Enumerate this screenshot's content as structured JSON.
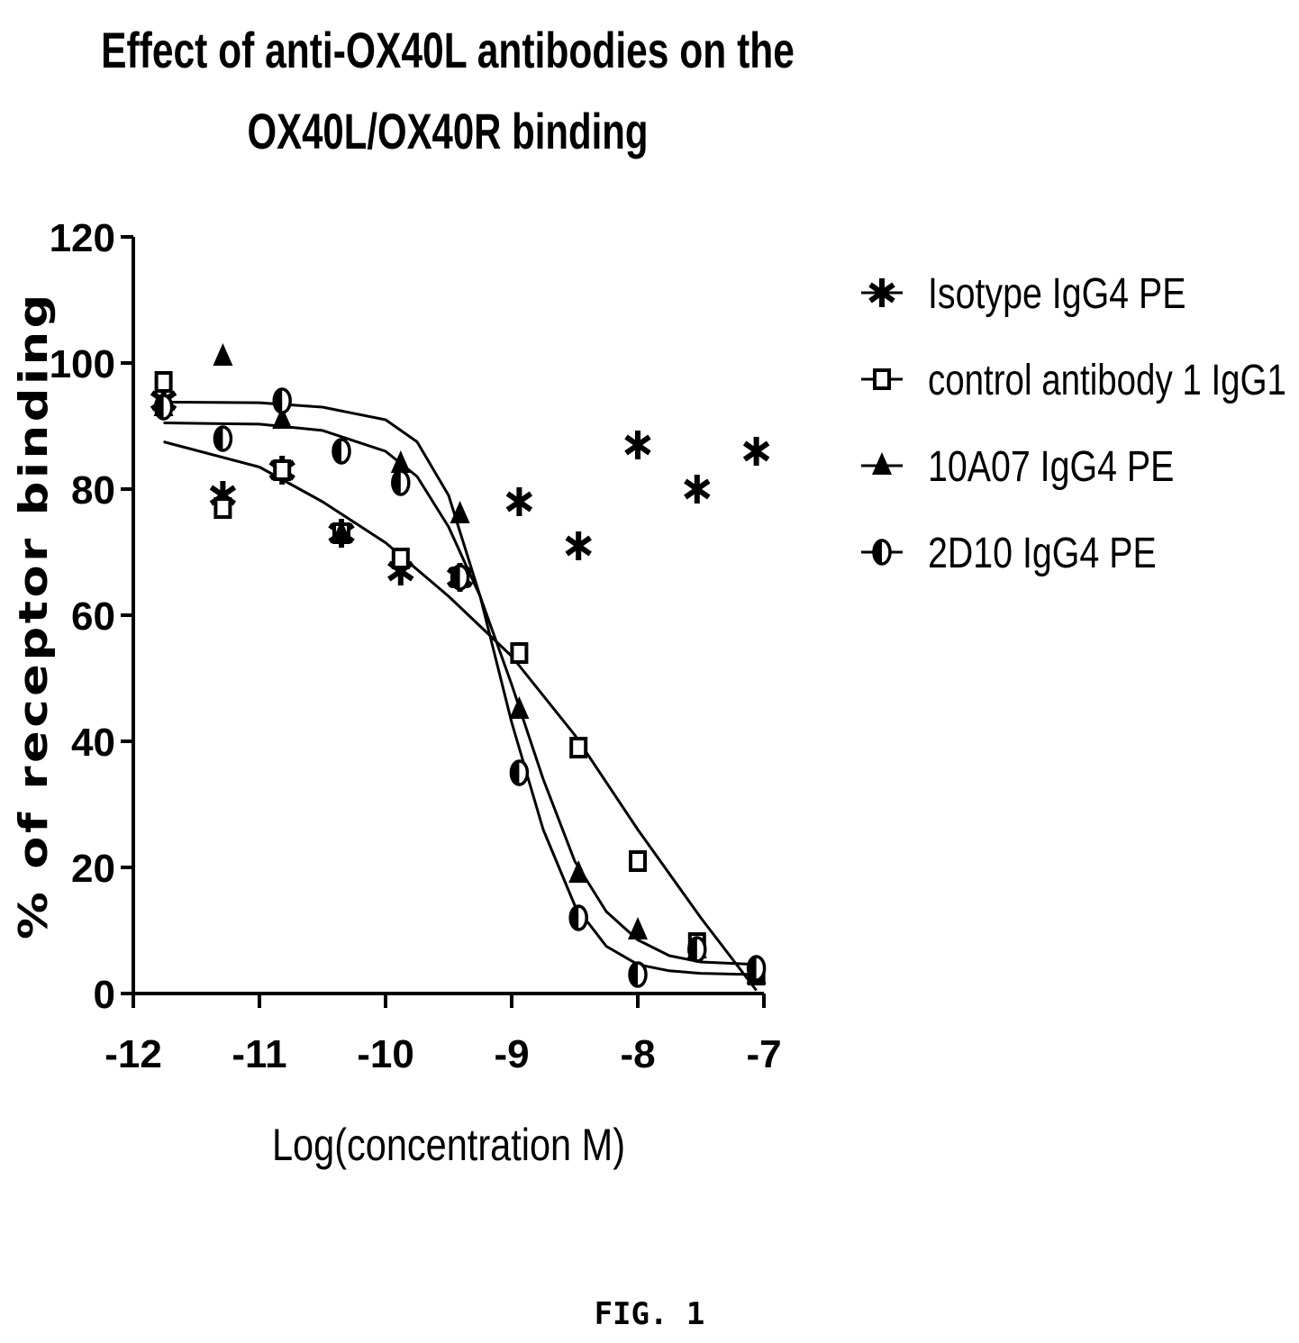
{
  "figure_caption": "FIG. 1",
  "chart_data": {
    "type": "scatter",
    "title_lines": [
      "Effect of anti-OX40L antibodies on the",
      "OX40L/OX40R binding"
    ],
    "xlabel": "Log(concentration M)",
    "ylabel": "% of receptor binding",
    "xlim": [
      -12,
      -7
    ],
    "ylim": [
      0,
      120
    ],
    "xticks": [
      -12,
      -11,
      -10,
      -9,
      -8,
      -7
    ],
    "yticks": [
      0,
      20,
      40,
      60,
      80,
      100,
      120
    ],
    "grid": false,
    "legend_position": "right",
    "series": [
      {
        "name": "Isotype IgG4 PE",
        "marker": "asterisk",
        "x": [
          -11.76,
          -11.29,
          -10.82,
          -10.35,
          -9.88,
          -9.41,
          -8.94,
          -8.47,
          -8.0,
          -7.53,
          -7.06
        ],
        "y": [
          94,
          79,
          83,
          73,
          67,
          66,
          78,
          71,
          87,
          80,
          86
        ]
      },
      {
        "name": "control antibody 1 IgG1",
        "marker": "square-open",
        "x": [
          -11.76,
          -11.29,
          -10.82,
          -10.35,
          -9.88,
          -9.41,
          -8.94,
          -8.47,
          -8.0,
          -7.53,
          -7.06
        ],
        "y": [
          97,
          77,
          83,
          73,
          69,
          66,
          54,
          39,
          21,
          8,
          3
        ],
        "fit": [
          [
            -11.76,
            87.5
          ],
          [
            -11.0,
            83.5
          ],
          [
            -10.5,
            78.0
          ],
          [
            -10.0,
            71.5
          ],
          [
            -9.5,
            63.0
          ],
          [
            -9.0,
            53.5
          ],
          [
            -8.5,
            41.0
          ],
          [
            -8.0,
            26.0
          ],
          [
            -7.5,
            12.0
          ],
          [
            -7.06,
            0.5
          ]
        ]
      },
      {
        "name": "10A07 IgG4 PE",
        "marker": "triangle-filled",
        "x": [
          -11.76,
          -11.29,
          -10.82,
          -10.35,
          -9.88,
          -9.41,
          -8.94,
          -8.47,
          -8.0,
          -7.53,
          -7.06
        ],
        "y": [
          93,
          101,
          91,
          73,
          84,
          76,
          45,
          19,
          10,
          7,
          3
        ],
        "fit": [
          [
            -11.76,
            90.5
          ],
          [
            -11.0,
            90.3
          ],
          [
            -10.5,
            89.3
          ],
          [
            -10.0,
            86.0
          ],
          [
            -9.75,
            82.0
          ],
          [
            -9.5,
            74.0
          ],
          [
            -9.25,
            63.0
          ],
          [
            -9.0,
            49.0
          ],
          [
            -8.75,
            34.0
          ],
          [
            -8.5,
            21.0
          ],
          [
            -8.25,
            13.0
          ],
          [
            -8.0,
            8.5
          ],
          [
            -7.75,
            6.0
          ],
          [
            -7.5,
            5.0
          ],
          [
            -7.06,
            4.6
          ]
        ]
      },
      {
        "name": "2D10 IgG4 PE",
        "marker": "circle-half",
        "x": [
          -11.76,
          -11.29,
          -10.82,
          -10.35,
          -9.88,
          -9.41,
          -8.94,
          -8.47,
          -8.0,
          -7.53,
          -7.06
        ],
        "y": [
          93,
          88,
          94,
          86,
          81,
          66,
          35,
          12,
          3,
          7,
          4
        ],
        "fit": [
          [
            -11.76,
            93.8
          ],
          [
            -11.0,
            93.7
          ],
          [
            -10.5,
            93.0
          ],
          [
            -10.0,
            91.0
          ],
          [
            -9.75,
            87.5
          ],
          [
            -9.5,
            79.0
          ],
          [
            -9.25,
            63.0
          ],
          [
            -9.0,
            43.0
          ],
          [
            -8.75,
            26.0
          ],
          [
            -8.5,
            14.0
          ],
          [
            -8.25,
            7.5
          ],
          [
            -8.0,
            4.6
          ],
          [
            -7.75,
            3.6
          ],
          [
            -7.5,
            3.2
          ],
          [
            -7.06,
            3.0
          ]
        ]
      }
    ]
  }
}
